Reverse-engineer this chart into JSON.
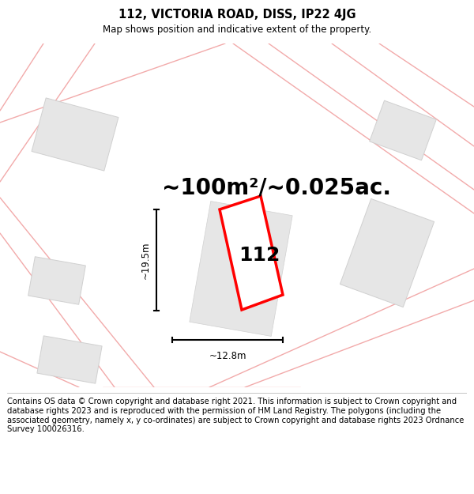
{
  "title": "112, VICTORIA ROAD, DISS, IP22 4JG",
  "subtitle": "Map shows position and indicative extent of the property.",
  "area_text": "~100m²/~0.025ac.",
  "number_label": "112",
  "dim_height": "~19.5m",
  "dim_width": "~12.8m",
  "footer": "Contains OS data © Crown copyright and database right 2021. This information is subject to Crown copyright and database rights 2023 and is reproduced with the permission of HM Land Registry. The polygons (including the associated geometry, namely x, y co-ordinates) are subject to Crown copyright and database rights 2023 Ordnance Survey 100026316.",
  "bg_color": "#ffffff",
  "road_color": "#f2aaaa",
  "building_color": "#e6e6e6",
  "building_outline": "#d0d0d0",
  "title_fontsize": 10.5,
  "subtitle_fontsize": 8.5,
  "area_fontsize": 20,
  "number_fontsize": 18,
  "dim_fontsize": 8.5,
  "footer_fontsize": 7.2
}
